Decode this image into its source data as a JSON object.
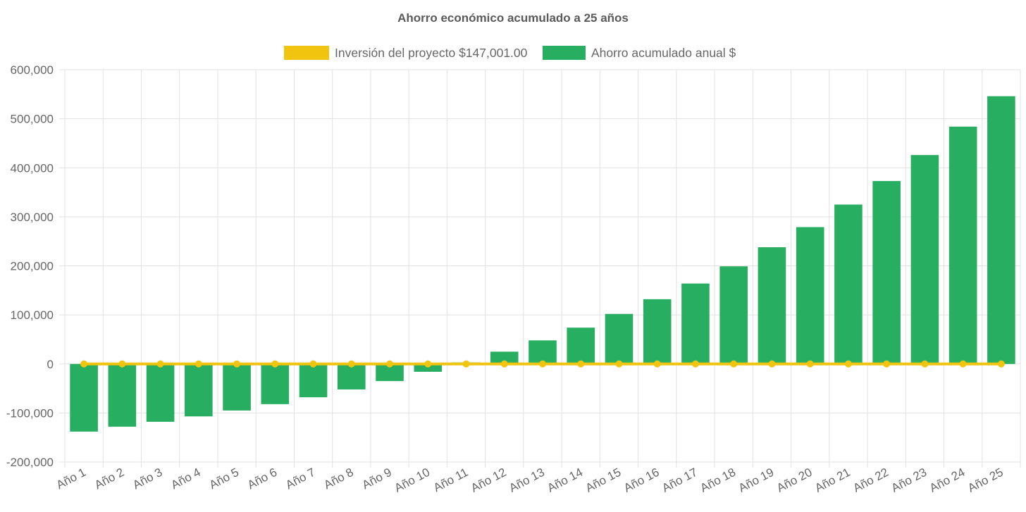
{
  "chart_data": {
    "type": "bar",
    "title": "Ahorro económico acumulado a 25 años",
    "categories": [
      "Año 1",
      "Año 2",
      "Año 3",
      "Año 4",
      "Año 5",
      "Año 6",
      "Año 7",
      "Año 8",
      "Año 9",
      "Año 10",
      "Año 11",
      "Año 12",
      "Año 13",
      "Año 14",
      "Año 15",
      "Año 16",
      "Año 17",
      "Año 18",
      "Año 19",
      "Año 20",
      "Año 21",
      "Año 22",
      "Año 23",
      "Año 24",
      "Año 25"
    ],
    "series": [
      {
        "name": "Inversión del proyecto $147,001.00",
        "type": "line",
        "color": "#f1c40f",
        "values": [
          0,
          0,
          0,
          0,
          0,
          0,
          0,
          0,
          0,
          0,
          0,
          0,
          0,
          0,
          0,
          0,
          0,
          0,
          0,
          0,
          0,
          0,
          0,
          0,
          0
        ]
      },
      {
        "name": "Ahorro acumulado anual $",
        "type": "bar",
        "color": "#27ae60",
        "values": [
          -138000,
          -128000,
          -118000,
          -107000,
          -95000,
          -82000,
          -68000,
          -52000,
          -35000,
          -16000,
          3000,
          25000,
          48000,
          74000,
          102000,
          132000,
          164000,
          199000,
          238000,
          279000,
          325000,
          373000,
          426000,
          484000,
          546000
        ]
      }
    ],
    "xlabel": "",
    "ylabel": "",
    "ylim": [
      -200000,
      600000
    ],
    "yticks": [
      600000,
      500000,
      400000,
      300000,
      200000,
      100000,
      0,
      -100000,
      -200000
    ],
    "ytick_labels": [
      "600,000",
      "500,000",
      "400,000",
      "300,000",
      "200,000",
      "100,000",
      "0",
      "-100,000",
      "-200,000"
    ],
    "legend_position": "top-center",
    "grid": true
  }
}
